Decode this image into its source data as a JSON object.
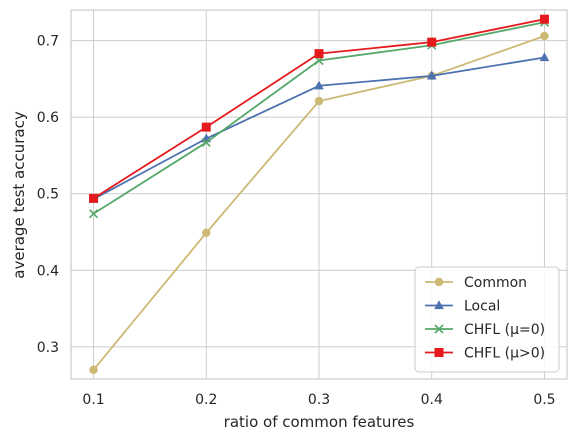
{
  "chart_data": {
    "type": "line",
    "xlabel": "ratio of common features",
    "ylabel": "average test accuracy",
    "x": [
      0.1,
      0.2,
      0.3,
      0.4,
      0.5
    ],
    "x_tick_labels": [
      "0.1",
      "0.2",
      "0.3",
      "0.4",
      "0.5"
    ],
    "y_ticks": [
      0.3,
      0.4,
      0.5,
      0.6,
      0.7
    ],
    "y_tick_labels": [
      "0.3",
      "0.4",
      "0.5",
      "0.6",
      "0.7"
    ],
    "xlim": [
      0.08,
      0.52
    ],
    "ylim": [
      0.258,
      0.74
    ],
    "grid": true,
    "legend_position": "lower-right",
    "series": [
      {
        "name": "Common",
        "values": [
          0.27,
          0.449,
          0.621,
          0.654,
          0.706
        ],
        "color": "#ccb974",
        "marker": "circle"
      },
      {
        "name": "Local",
        "values": [
          0.493,
          0.572,
          0.641,
          0.654,
          0.678
        ],
        "color": "#4c72b0",
        "marker": "triangle"
      },
      {
        "name": "CHFL (μ=0)",
        "values": [
          0.474,
          0.567,
          0.674,
          0.694,
          0.724
        ],
        "color": "#55a868",
        "marker": "x"
      },
      {
        "name": "CHFL (μ>0)",
        "values": [
          0.494,
          0.587,
          0.683,
          0.698,
          0.728
        ],
        "color": "#e41a1c",
        "marker": "square"
      }
    ]
  }
}
